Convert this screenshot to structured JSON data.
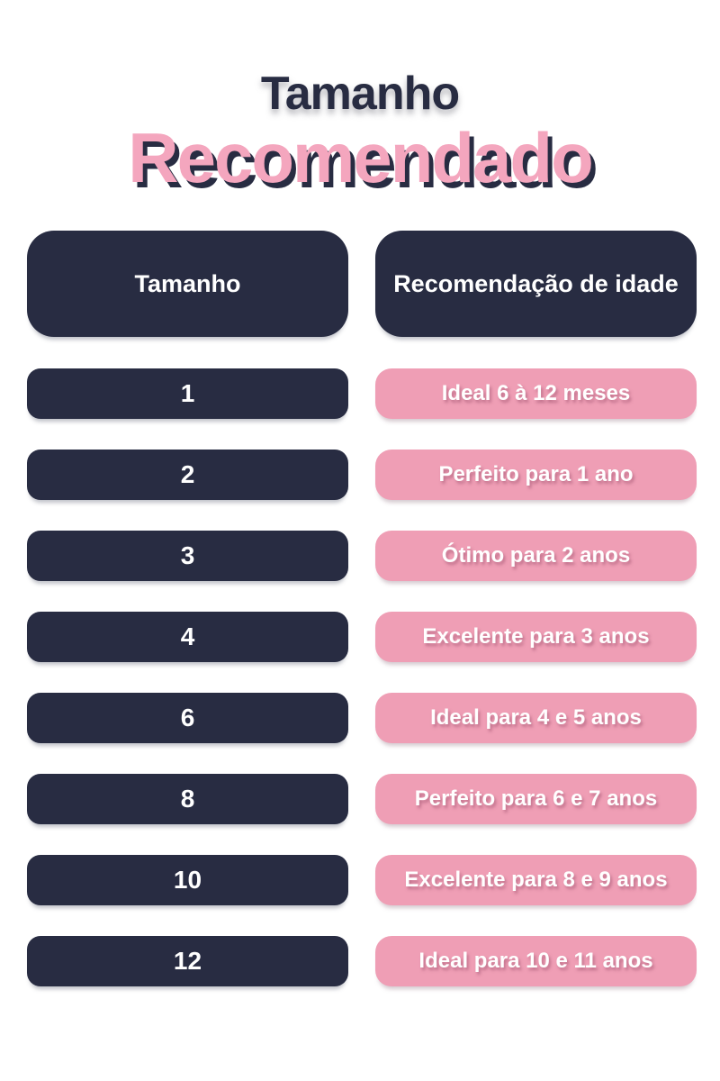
{
  "title": {
    "line1": "Tamanho",
    "line2": "Recomendado"
  },
  "table": {
    "header_size": "Tamanho",
    "header_age": "Recomendação de idade",
    "rows": [
      {
        "size": "1",
        "age": "Ideal 6 à 12 meses"
      },
      {
        "size": "2",
        "age": "Perfeito para 1 ano"
      },
      {
        "size": "3",
        "age": "Ótimo para 2 anos"
      },
      {
        "size": "4",
        "age": "Excelente para 3 anos"
      },
      {
        "size": "6",
        "age": "Ideal para 4 e 5 anos"
      },
      {
        "size": "8",
        "age": "Perfeito para 6 e 7 anos"
      },
      {
        "size": "10",
        "age": "Excelente para 8 e 9 anos"
      },
      {
        "size": "12",
        "age": "Ideal para 10 e 11 anos"
      }
    ]
  },
  "colors": {
    "background": "#ffffff",
    "navy": "#282c42",
    "pink": "#ef9eb5",
    "title_pink": "#f4a6be",
    "text": "#ffffff"
  },
  "chart_data": {
    "type": "table",
    "title": "Tamanho Recomendado",
    "columns": [
      "Tamanho",
      "Recomendação de idade"
    ],
    "rows": [
      [
        "1",
        "Ideal 6 à 12 meses"
      ],
      [
        "2",
        "Perfeito para 1 ano"
      ],
      [
        "3",
        "Ótimo para 2 anos"
      ],
      [
        "4",
        "Excelente para 3 anos"
      ],
      [
        "6",
        "Ideal para 4 e 5 anos"
      ],
      [
        "8",
        "Perfeito para 6 e 7 anos"
      ],
      [
        "10",
        "Excelente para 8 e 9 anos"
      ],
      [
        "12",
        "Ideal para 10 e 11 anos"
      ]
    ],
    "legend_position": "none",
    "grid": false
  }
}
